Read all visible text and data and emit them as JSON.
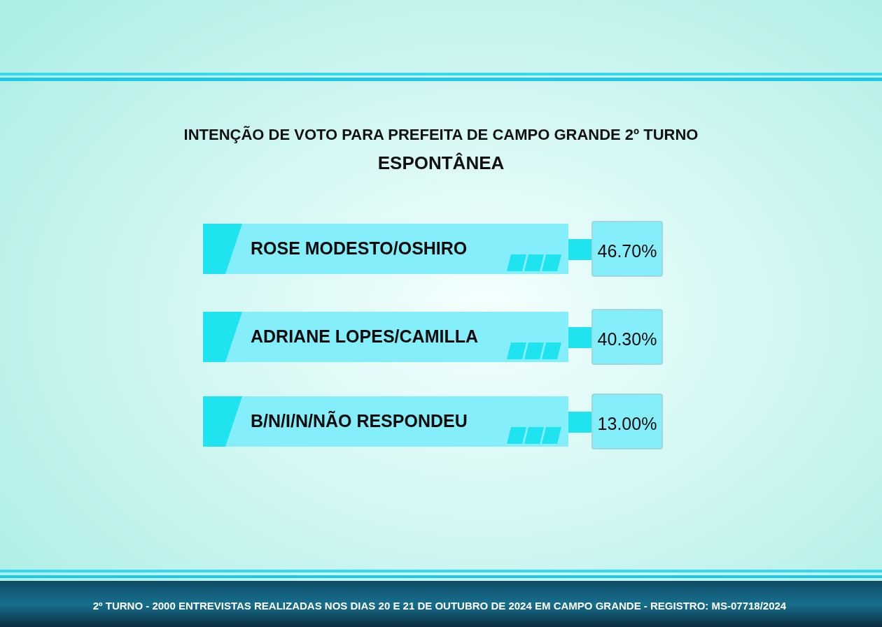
{
  "chart_data": {
    "type": "other",
    "title": "INTENÇÃO DE VOTO PARA PREFEITA DE CAMPO GRANDE 2º TURNO",
    "subtitle": "ESPONTÂNEA",
    "categories": [
      "ROSE MODESTO/OSHIRO",
      "ADRIANE LOPES/CAMILLA",
      "B/N/I/N/NÃO RESPONDEU"
    ],
    "values": [
      46.7,
      40.3,
      13.0
    ],
    "value_labels": [
      "46.70%",
      "40.30%",
      "13.00%"
    ],
    "color": "#84eefa",
    "annotations": [
      "2º TURNO - 2000 ENTREVISTAS REALIZADAS NOS DIAS 20 E 21 DE OUTUBRO DE 2024 EM CAMPO GRANDE - REGISTRO: MS-07718/2024"
    ]
  }
}
